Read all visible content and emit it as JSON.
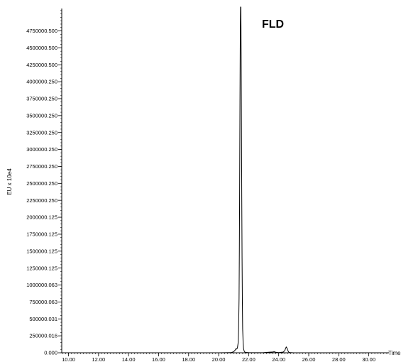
{
  "chart_data": {
    "type": "line",
    "title": "",
    "annotation": "FLD",
    "xlabel": "Time",
    "ylabel": "EU x 10e4",
    "xlim": [
      9.55,
      31.2
    ],
    "ylim": [
      0,
      5080000
    ],
    "grid": false,
    "legend": "none",
    "x_tick_labels": [
      "10.00",
      "12.00",
      "14.00",
      "16.00",
      "18.00",
      "20.00",
      "22.00",
      "24.00",
      "26.00",
      "28.00",
      "30.00"
    ],
    "x_tick_values": [
      10,
      12,
      14,
      16,
      18,
      20,
      22,
      24,
      26,
      28,
      30
    ],
    "y_tick_labels": [
      "0.000",
      "250000.016",
      "500000.031",
      "750000.063",
      "1000000.063",
      "1250000.125",
      "1500000.125",
      "1750000.125",
      "2000000.125",
      "2250000.250",
      "2500000.250",
      "2750000.250",
      "3000000.250",
      "3250000.250",
      "3500000.250",
      "3750000.250",
      "4000000.250",
      "4250000.500",
      "4500000.500",
      "4750000.500"
    ],
    "y_tick_values": [
      0,
      250000,
      500000,
      750000,
      1000000,
      1250000,
      1500000,
      1750000,
      2000000,
      2250000,
      2500000,
      2750000,
      3000000,
      3250000,
      3500000,
      3750000,
      4000000,
      4250000,
      4500000,
      4750000
    ],
    "series": [
      {
        "x": [
          9.55,
          12.0,
          15.0,
          18.0,
          20.0,
          20.8,
          21.0,
          21.1,
          21.15,
          21.2,
          21.25,
          21.3,
          21.33,
          21.36,
          21.38,
          21.4,
          21.42,
          21.44,
          21.46,
          21.48,
          21.5,
          21.52,
          21.54,
          21.56,
          21.58,
          21.6,
          21.63,
          21.66,
          21.7,
          21.75,
          21.8,
          22.0,
          22.5,
          23.0,
          23.6,
          23.7,
          23.8,
          24.0,
          24.3,
          24.4,
          24.45,
          24.5,
          24.55,
          24.6,
          24.65,
          24.7,
          24.8,
          25.0,
          27.0,
          29.0,
          31.2
        ],
        "y": [
          0,
          0,
          0,
          0,
          0,
          2000,
          15000,
          40000,
          60000,
          55000,
          70000,
          150000,
          350000,
          800000,
          1500000,
          2500000,
          3700000,
          4700000,
          5200000,
          5100000,
          4400000,
          3400000,
          2300000,
          1400000,
          750000,
          350000,
          150000,
          60000,
          25000,
          10000,
          5000,
          2000,
          1000,
          3000,
          12000,
          15000,
          8000,
          3000,
          10000,
          30000,
          60000,
          85000,
          70000,
          40000,
          15000,
          5000,
          2000,
          0,
          0,
          0,
          0
        ]
      }
    ]
  }
}
